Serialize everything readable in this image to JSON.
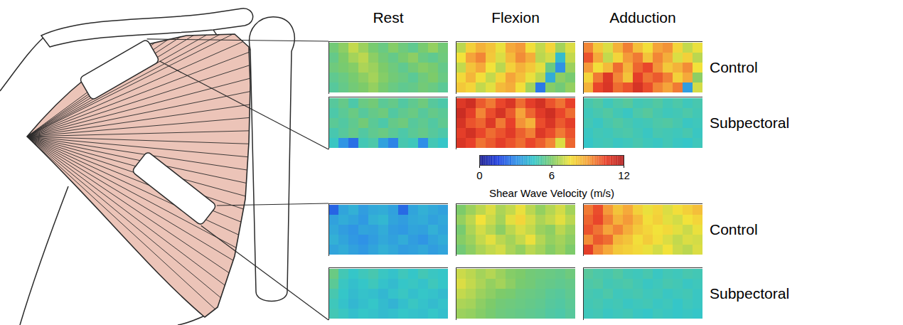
{
  "chart_data": {
    "type": "heatmap",
    "columns": [
      "Rest",
      "Flexion",
      "Adduction"
    ],
    "rows": [
      "Control",
      "Subpectoral",
      "Control",
      "Subpectoral"
    ],
    "tick_labels": false,
    "colorbar": {
      "label": "Shear Wave Velocity (m/s)",
      "range": [
        0,
        12
      ],
      "ticks": [
        0,
        6,
        12
      ]
    },
    "cells": [
      [
        [
          [
            5.8,
            6.2,
            6.9,
            6.4,
            5.9,
            5.6,
            6.1,
            5.7,
            5.4,
            5.9,
            6.3,
            5.8
          ],
          [
            5.5,
            6.0,
            6.5,
            6.8,
            6.2,
            5.8,
            5.5,
            5.9,
            6.2,
            5.6,
            5.4,
            5.7
          ],
          [
            5.7,
            5.9,
            6.1,
            6.6,
            6.4,
            6.0,
            5.7,
            5.4,
            5.8,
            6.1,
            5.9,
            5.5
          ],
          [
            5.4,
            5.6,
            5.9,
            6.2,
            6.5,
            6.1,
            5.8,
            5.6,
            5.3,
            5.7,
            6.0,
            5.6
          ],
          [
            5.2,
            5.5,
            5.8,
            6.0,
            6.3,
            5.9,
            5.6,
            5.4,
            5.5,
            5.8,
            5.6,
            5.3
          ]
        ],
        [
          [
            6.8,
            7.9,
            8.6,
            8.2,
            7.4,
            8.8,
            9.1,
            7.6,
            6.9,
            7.8,
            6.5,
            7.2
          ],
          [
            7.5,
            8.9,
            9.4,
            8.1,
            7.2,
            8.4,
            9.3,
            8.7,
            6.8,
            7.1,
            4.2,
            6.9
          ],
          [
            6.9,
            8.2,
            8.8,
            7.5,
            6.8,
            7.9,
            8.6,
            8.1,
            7.3,
            5.6,
            3.1,
            6.4
          ],
          [
            7.7,
            8.5,
            7.6,
            6.9,
            7.8,
            8.9,
            8.3,
            7.4,
            6.8,
            3.8,
            6.2,
            5.9
          ],
          [
            8.1,
            7.8,
            6.9,
            7.3,
            8.4,
            8.7,
            7.6,
            6.5,
            2.6,
            6.1,
            5.8,
            6.3
          ]
        ],
        [
          [
            9.4,
            8.1,
            7.2,
            8.6,
            9.5,
            8.3,
            7.6,
            8.9,
            9.2,
            7.8,
            6.9,
            7.4
          ],
          [
            10.2,
            8.8,
            6.9,
            7.8,
            9.1,
            9.6,
            8.2,
            9.4,
            8.7,
            7.2,
            7.9,
            6.8
          ],
          [
            9.1,
            7.6,
            8.4,
            9.8,
            8.6,
            9.9,
            10.4,
            9.2,
            8.1,
            8.6,
            9.3,
            7.5
          ],
          [
            7.8,
            9.6,
            10.8,
            9.4,
            8.2,
            10.6,
            9.7,
            10.1,
            9.5,
            7.9,
            8.8,
            6.2
          ],
          [
            8.6,
            10.4,
            10.9,
            9.8,
            10.2,
            11.0,
            10.3,
            9.4,
            8.9,
            9.6,
            3.4,
            7.1
          ]
        ]
      ],
      [
        [
          [
            5.2,
            5.5,
            5.0,
            5.6,
            5.8,
            5.3,
            5.5,
            5.1,
            5.4,
            5.7,
            5.2,
            5.0
          ],
          [
            5.0,
            5.3,
            5.6,
            5.2,
            5.5,
            5.7,
            5.1,
            5.4,
            5.6,
            5.2,
            5.5,
            5.3
          ],
          [
            5.3,
            5.1,
            5.4,
            5.8,
            5.3,
            5.0,
            5.5,
            5.7,
            5.2,
            5.4,
            5.1,
            5.4
          ],
          [
            4.9,
            5.2,
            5.5,
            5.1,
            5.4,
            5.6,
            5.3,
            5.0,
            5.3,
            5.5,
            5.2,
            5.0
          ],
          [
            4.6,
            3.2,
            2.4,
            4.8,
            5.0,
            3.5,
            2.8,
            4.9,
            4.7,
            3.0,
            4.8,
            4.5
          ]
        ],
        [
          [
            10.8,
            11.2,
            10.1,
            9.6,
            10.4,
            10.9,
            9.8,
            10.6,
            11.1,
            10.2,
            9.7,
            10.5
          ],
          [
            11.3,
            10.6,
            9.4,
            10.3,
            11.0,
            10.1,
            8.9,
            9.9,
            10.7,
            11.2,
            10.4,
            9.8
          ],
          [
            11.0,
            10.2,
            9.9,
            10.8,
            9.6,
            10.5,
            9.2,
            8.6,
            10.3,
            10.9,
            10.1,
            10.6
          ],
          [
            10.6,
            11.1,
            10.4,
            9.8,
            10.2,
            10.7,
            10.0,
            9.5,
            10.8,
            10.3,
            9.6,
            10.2
          ],
          [
            10.9,
            10.5,
            9.7,
            10.1,
            10.6,
            10.2,
            9.8,
            10.4,
            10.0,
            9.4,
            7.2,
            9.9
          ]
        ],
        [
          [
            4.9,
            5.1,
            4.7,
            5.0,
            5.2,
            4.8,
            4.9,
            5.1,
            4.8,
            5.0,
            4.7,
            4.9
          ],
          [
            4.7,
            4.9,
            5.1,
            4.8,
            4.6,
            5.0,
            5.2,
            4.9,
            4.7,
            4.8,
            5.0,
            4.8
          ],
          [
            4.8,
            4.6,
            4.9,
            5.1,
            4.9,
            4.7,
            4.8,
            5.0,
            5.1,
            4.9,
            4.6,
            4.7
          ],
          [
            4.6,
            4.8,
            4.7,
            4.9,
            5.0,
            4.8,
            4.6,
            4.9,
            4.8,
            4.7,
            4.9,
            4.6
          ],
          [
            4.5,
            4.7,
            4.8,
            4.6,
            4.7,
            4.9,
            4.7,
            4.6,
            4.8,
            4.6,
            4.5,
            4.7
          ]
        ]
      ],
      [
        [
          [
            2.2,
            3.6,
            3.9,
            3.4,
            3.7,
            3.8,
            3.5,
            2.3,
            3.6,
            3.9,
            3.7,
            3.5
          ],
          [
            3.5,
            3.8,
            3.6,
            3.3,
            3.9,
            4.1,
            3.6,
            3.4,
            3.7,
            3.8,
            3.5,
            3.7
          ],
          [
            3.7,
            3.4,
            3.2,
            3.6,
            3.5,
            3.8,
            3.4,
            3.3,
            3.6,
            3.5,
            3.9,
            3.6
          ],
          [
            3.9,
            3.6,
            3.3,
            3.1,
            3.4,
            3.7,
            3.5,
            3.8,
            3.4,
            3.2,
            3.6,
            3.8
          ],
          [
            3.6,
            3.8,
            3.5,
            3.3,
            3.6,
            3.9,
            3.7,
            3.4,
            3.5,
            3.7,
            3.4,
            3.6
          ]
        ],
        [
          [
            6.0,
            6.4,
            6.8,
            7.2,
            6.6,
            6.9,
            7.4,
            6.8,
            6.3,
            6.7,
            7.1,
            6.5
          ],
          [
            6.3,
            6.8,
            7.5,
            7.0,
            6.5,
            7.3,
            7.8,
            7.1,
            6.6,
            6.9,
            7.3,
            6.8
          ],
          [
            5.9,
            6.6,
            7.1,
            6.7,
            6.2,
            6.8,
            7.2,
            6.9,
            6.4,
            6.2,
            6.8,
            6.4
          ],
          [
            6.1,
            6.4,
            6.9,
            7.3,
            6.8,
            6.5,
            6.9,
            7.4,
            6.7,
            6.3,
            6.5,
            6.2
          ],
          [
            5.8,
            6.2,
            6.6,
            6.9,
            7.1,
            6.6,
            6.3,
            6.8,
            6.5,
            6.1,
            6.4,
            6.0
          ]
        ],
        [
          [
            9.6,
            10.3,
            9.1,
            8.2,
            8.8,
            7.9,
            7.4,
            7.8,
            7.2,
            7.6,
            7.9,
            8.3
          ],
          [
            9.9,
            10.4,
            9.5,
            8.6,
            9.1,
            8.4,
            7.6,
            7.9,
            7.3,
            7.1,
            7.5,
            7.8
          ],
          [
            10.2,
            9.7,
            8.9,
            9.4,
            8.7,
            8.1,
            7.8,
            7.5,
            7.7,
            7.3,
            7.0,
            7.4
          ],
          [
            9.3,
            10.1,
            9.8,
            8.5,
            8.2,
            7.6,
            8.0,
            7.6,
            7.2,
            6.9,
            7.2,
            7.1
          ],
          [
            10.6,
            9.4,
            8.8,
            8.1,
            7.9,
            7.7,
            7.4,
            7.1,
            7.5,
            7.0,
            6.8,
            7.2
          ]
        ]
      ],
      [
        [
          [
            5.6,
            4.8,
            4.5,
            4.7,
            4.9,
            4.6,
            4.4,
            4.7,
            4.5,
            4.8,
            4.6,
            4.5
          ],
          [
            5.3,
            4.6,
            4.3,
            4.5,
            4.7,
            4.4,
            4.2,
            4.5,
            4.6,
            4.4,
            4.7,
            4.5
          ],
          [
            4.9,
            4.5,
            4.2,
            4.4,
            4.3,
            4.1,
            4.4,
            4.6,
            4.3,
            4.5,
            4.4,
            4.2
          ],
          [
            4.7,
            4.4,
            4.1,
            4.3,
            4.5,
            4.2,
            4.0,
            4.3,
            4.6,
            4.4,
            4.2,
            4.4
          ],
          [
            4.8,
            4.6,
            4.3,
            4.5,
            4.4,
            4.2,
            4.3,
            4.5,
            4.4,
            4.3,
            4.5,
            4.3
          ]
        ],
        [
          [
            7.0,
            6.8,
            6.5,
            6.7,
            6.4,
            6.1,
            6.0,
            5.8,
            5.7,
            5.6,
            5.5,
            5.7
          ],
          [
            7.2,
            6.9,
            6.6,
            6.3,
            6.5,
            6.2,
            5.9,
            5.8,
            5.6,
            5.5,
            5.4,
            5.5
          ],
          [
            6.9,
            6.7,
            6.4,
            6.2,
            6.0,
            5.9,
            5.7,
            5.6,
            5.5,
            5.3,
            5.2,
            5.4
          ],
          [
            6.6,
            6.5,
            6.2,
            6.0,
            5.8,
            5.7,
            5.6,
            5.5,
            5.4,
            5.2,
            5.1,
            5.3
          ],
          [
            6.4,
            6.3,
            6.1,
            5.9,
            5.7,
            5.6,
            5.5,
            5.4,
            5.3,
            5.1,
            5.0,
            5.2
          ]
        ],
        [
          [
            5.2,
            5.0,
            4.9,
            5.1,
            4.8,
            4.7,
            4.9,
            4.6,
            4.8,
            4.7,
            4.9,
            4.8
          ],
          [
            5.0,
            5.1,
            4.8,
            4.9,
            5.0,
            4.8,
            4.6,
            4.7,
            4.9,
            4.8,
            4.6,
            4.7
          ],
          [
            4.9,
            4.8,
            5.0,
            4.7,
            4.8,
            4.9,
            4.7,
            4.8,
            4.6,
            4.7,
            4.8,
            4.6
          ],
          [
            4.8,
            4.9,
            4.7,
            4.8,
            4.6,
            4.7,
            4.8,
            4.6,
            4.7,
            4.5,
            4.7,
            4.6
          ],
          [
            4.7,
            4.8,
            4.6,
            4.7,
            4.8,
            4.6,
            4.5,
            4.7,
            4.6,
            4.5,
            4.6,
            4.5
          ]
        ]
      ]
    ]
  }
}
